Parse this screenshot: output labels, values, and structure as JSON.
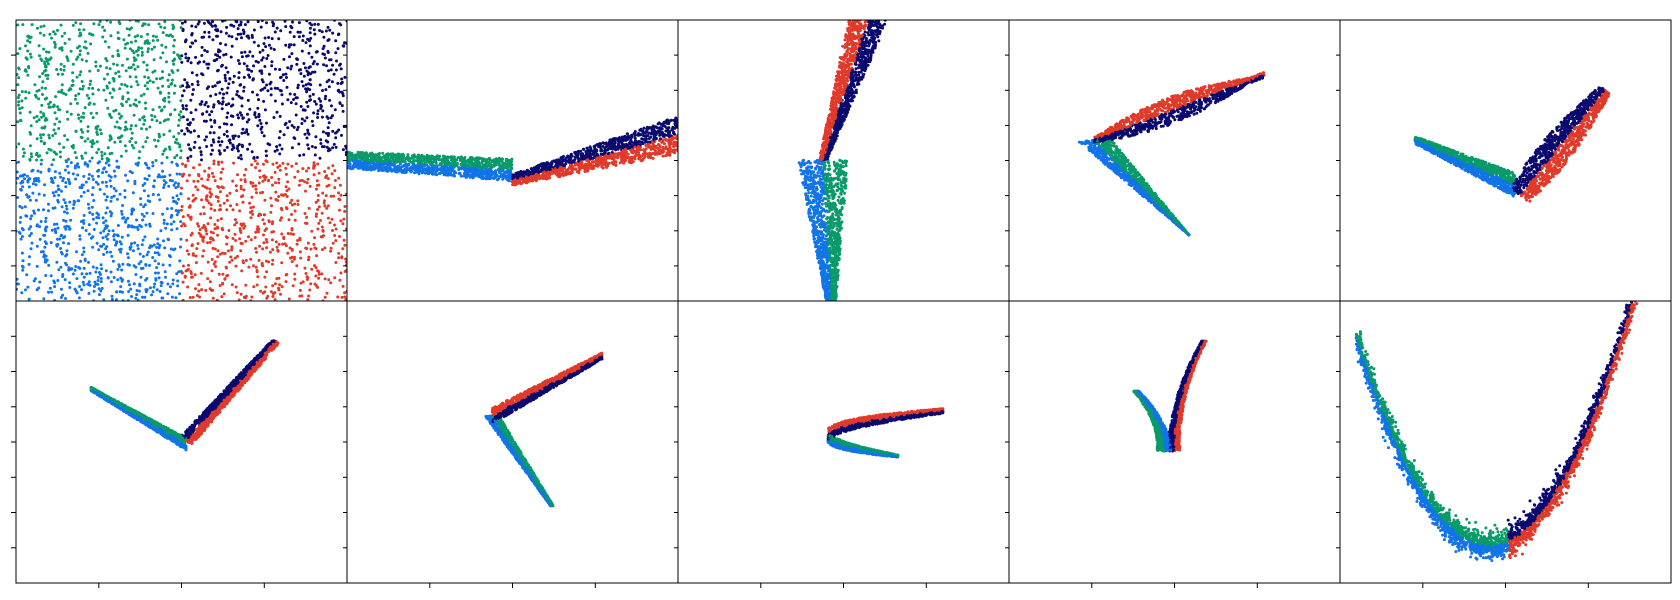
{
  "figure": {
    "rows": 2,
    "cols": 5,
    "colors": {
      "blue": "#1174e8",
      "green": "#0a9a6a",
      "navy": "#0a0a6e",
      "red": "#e03a2a"
    }
  },
  "chart_data": [
    {
      "type": "scatter",
      "panel": 1,
      "shape": "quadrants",
      "title": "",
      "xlabel": "",
      "ylabel": "",
      "series": [
        {
          "color": "blue"
        },
        {
          "color": "green"
        },
        {
          "color": "navy"
        },
        {
          "color": "red"
        }
      ]
    },
    {
      "type": "scatter",
      "panel": 2,
      "shape": "wide-v",
      "title": "",
      "xlabel": "",
      "ylabel": ""
    },
    {
      "type": "scatter",
      "panel": 3,
      "shape": "vertical-chevron",
      "title": "",
      "xlabel": "",
      "ylabel": ""
    },
    {
      "type": "scatter",
      "panel": 4,
      "shape": "arrowhead",
      "title": "",
      "xlabel": "",
      "ylabel": ""
    },
    {
      "type": "scatter",
      "panel": 5,
      "shape": "v-right",
      "title": "",
      "xlabel": "",
      "ylabel": ""
    },
    {
      "type": "scatter",
      "panel": 6,
      "shape": "v-narrow",
      "title": "",
      "xlabel": "",
      "ylabel": ""
    },
    {
      "type": "scatter",
      "panel": 7,
      "shape": "chevron-left",
      "title": "",
      "xlabel": "",
      "ylabel": ""
    },
    {
      "type": "scatter",
      "panel": 8,
      "shape": "boomerang",
      "title": "",
      "xlabel": "",
      "ylabel": ""
    },
    {
      "type": "scatter",
      "panel": 9,
      "shape": "j-curve",
      "title": "",
      "xlabel": "",
      "ylabel": ""
    },
    {
      "type": "scatter",
      "panel": 10,
      "shape": "u-curve",
      "title": "",
      "xlabel": "",
      "ylabel": ""
    }
  ]
}
